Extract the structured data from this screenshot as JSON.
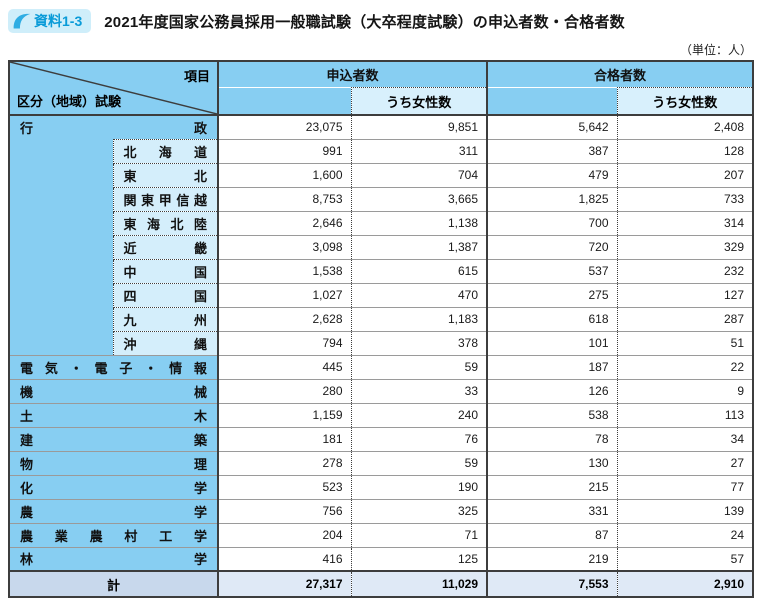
{
  "header": {
    "badge": "資料1-3",
    "title": "2021年度国家公務員採用一般職試験（大卒程度試験）の申込者数・合格者数",
    "unit_note": "（単位：人）"
  },
  "colors": {
    "header_blue": "#87cef2",
    "region_blue": "#d4eefb",
    "sub_header_blue": "#d8f0fc",
    "total_label_bg": "#c8d8ec",
    "total_value_bg": "#dfe9f6",
    "badge_bg": "#cfeefa",
    "badge_text": "#0a9bd8",
    "border_dark": "#3d3d3d",
    "border_gray": "#9a9a9a"
  },
  "table": {
    "corner": {
      "item_label": "項目",
      "category_label": "区分（地域）試験"
    },
    "column_groups": [
      {
        "label": "申込者数",
        "sub_label": "うち女性数"
      },
      {
        "label": "合格者数",
        "sub_label": "うち女性数"
      }
    ],
    "rows": [
      {
        "type": "main",
        "label": "行政",
        "values": [
          "23,075",
          "9,851",
          "5,642",
          "2,408"
        ]
      },
      {
        "type": "region",
        "label": "北海道",
        "values": [
          "991",
          "311",
          "387",
          "128"
        ]
      },
      {
        "type": "region",
        "label": "東北",
        "values": [
          "1,600",
          "704",
          "479",
          "207"
        ]
      },
      {
        "type": "region",
        "label": "関東甲信越",
        "values": [
          "8,753",
          "3,665",
          "1,825",
          "733"
        ]
      },
      {
        "type": "region",
        "label": "東海北陸",
        "values": [
          "2,646",
          "1,138",
          "700",
          "314"
        ]
      },
      {
        "type": "region",
        "label": "近畿",
        "values": [
          "3,098",
          "1,387",
          "720",
          "329"
        ]
      },
      {
        "type": "region",
        "label": "中国",
        "values": [
          "1,538",
          "615",
          "537",
          "232"
        ]
      },
      {
        "type": "region",
        "label": "四国",
        "values": [
          "1,027",
          "470",
          "275",
          "127"
        ]
      },
      {
        "type": "region",
        "label": "九州",
        "values": [
          "2,628",
          "1,183",
          "618",
          "287"
        ]
      },
      {
        "type": "region",
        "label": "沖縄",
        "values": [
          "794",
          "378",
          "101",
          "51"
        ]
      },
      {
        "type": "main",
        "label": "電気・電子・情報",
        "values": [
          "445",
          "59",
          "187",
          "22"
        ]
      },
      {
        "type": "main",
        "label": "機械",
        "values": [
          "280",
          "33",
          "126",
          "9"
        ]
      },
      {
        "type": "main",
        "label": "土木",
        "values": [
          "1,159",
          "240",
          "538",
          "113"
        ]
      },
      {
        "type": "main",
        "label": "建築",
        "values": [
          "181",
          "76",
          "78",
          "34"
        ]
      },
      {
        "type": "main",
        "label": "物理",
        "values": [
          "278",
          "59",
          "130",
          "27"
        ]
      },
      {
        "type": "main",
        "label": "化学",
        "values": [
          "523",
          "190",
          "215",
          "77"
        ]
      },
      {
        "type": "main",
        "label": "農学",
        "values": [
          "756",
          "325",
          "331",
          "139"
        ]
      },
      {
        "type": "main",
        "label": "農業農村工学",
        "values": [
          "204",
          "71",
          "87",
          "24"
        ]
      },
      {
        "type": "main",
        "label": "林学",
        "values": [
          "416",
          "125",
          "219",
          "57"
        ]
      },
      {
        "type": "total",
        "label": "計",
        "values": [
          "27,317",
          "11,029",
          "7,553",
          "2,910"
        ]
      }
    ]
  }
}
